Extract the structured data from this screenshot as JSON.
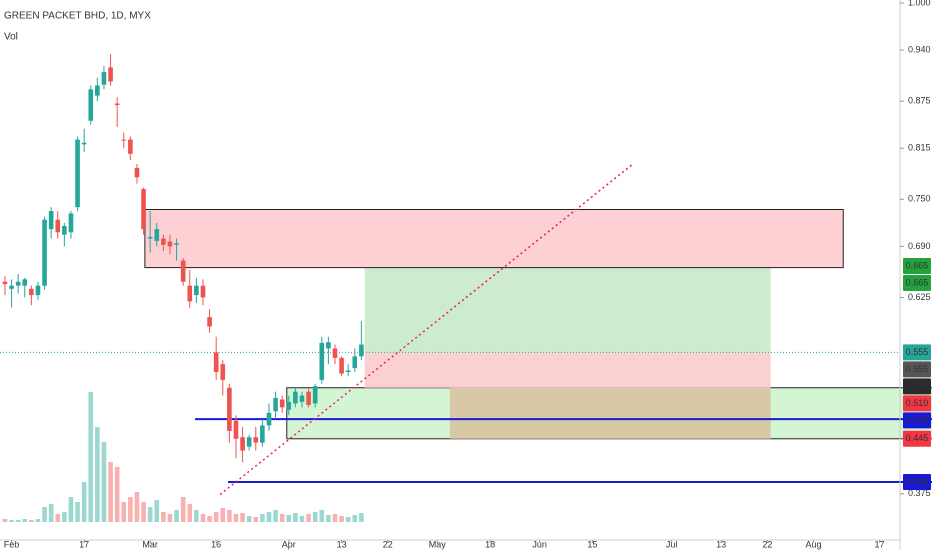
{
  "chart_data": {
    "type": "candlestick",
    "title": "GREEN PACKET BHD, 1D, MYX",
    "subtitle": "Vol",
    "up_color": "#26a69a",
    "down_color": "#ef5350",
    "x": [
      -1,
      0,
      1,
      2,
      3,
      4,
      5,
      6,
      7,
      8,
      9,
      10,
      11,
      12,
      13,
      14,
      15,
      16,
      17,
      18,
      19,
      20,
      21,
      22,
      23,
      24,
      25,
      26,
      27,
      28,
      29,
      30,
      31,
      32,
      33,
      34,
      35,
      36,
      37,
      38,
      39,
      40,
      41,
      42,
      43,
      44,
      45,
      46,
      47,
      48,
      49,
      50,
      51,
      52,
      53
    ],
    "open": [
      0.645,
      0.636,
      0.64,
      0.64,
      0.636,
      0.628,
      0.64,
      0.712,
      0.724,
      0.705,
      0.708,
      0.74,
      0.82,
      0.85,
      0.882,
      0.896,
      0.918,
      0.872,
      0.826,
      0.826,
      0.79,
      0.763,
      0.7,
      0.697,
      0.7,
      0.696,
      0.692,
      0.672,
      0.64,
      0.628,
      0.64,
      0.6,
      0.555,
      0.54,
      0.51,
      0.468,
      0.447,
      0.435,
      0.447,
      0.44,
      0.462,
      0.48,
      0.495,
      0.482,
      0.49,
      0.492,
      0.505,
      0.49,
      0.52,
      0.56,
      0.56,
      0.548,
      0.53,
      0.535,
      0.55
    ],
    "high": [
      0.652,
      0.648,
      0.655,
      0.65,
      0.64,
      0.645,
      0.728,
      0.74,
      0.735,
      0.72,
      0.735,
      0.83,
      0.84,
      0.895,
      0.905,
      0.92,
      0.935,
      0.88,
      0.835,
      0.83,
      0.795,
      0.765,
      0.735,
      0.72,
      0.705,
      0.705,
      0.7,
      0.675,
      0.66,
      0.65,
      0.648,
      0.61,
      0.575,
      0.545,
      0.515,
      0.475,
      0.46,
      0.45,
      0.46,
      0.47,
      0.49,
      0.505,
      0.5,
      0.5,
      0.51,
      0.505,
      0.51,
      0.515,
      0.575,
      0.575,
      0.565,
      0.55,
      0.54,
      0.56,
      0.595
    ],
    "low": [
      0.628,
      0.612,
      0.63,
      0.625,
      0.615,
      0.622,
      0.635,
      0.7,
      0.7,
      0.69,
      0.7,
      0.735,
      0.81,
      0.845,
      0.875,
      0.89,
      0.895,
      0.842,
      0.815,
      0.8,
      0.77,
      0.705,
      0.682,
      0.69,
      0.684,
      0.68,
      0.672,
      0.64,
      0.612,
      0.618,
      0.615,
      0.58,
      0.52,
      0.5,
      0.44,
      0.42,
      0.415,
      0.43,
      0.43,
      0.435,
      0.455,
      0.47,
      0.478,
      0.475,
      0.485,
      0.485,
      0.485,
      0.485,
      0.515,
      0.54,
      0.54,
      0.525,
      0.525,
      0.53,
      0.545
    ],
    "close": [
      0.642,
      0.64,
      0.645,
      0.648,
      0.628,
      0.64,
      0.724,
      0.735,
      0.708,
      0.716,
      0.732,
      0.826,
      0.822,
      0.89,
      0.895,
      0.912,
      0.9,
      0.87,
      0.825,
      0.808,
      0.778,
      0.712,
      0.702,
      0.712,
      0.692,
      0.69,
      0.694,
      0.645,
      0.62,
      0.64,
      0.625,
      0.588,
      0.53,
      0.52,
      0.455,
      0.445,
      0.43,
      0.447,
      0.44,
      0.462,
      0.478,
      0.497,
      0.485,
      0.492,
      0.505,
      0.5,
      0.488,
      0.512,
      0.567,
      0.568,
      0.548,
      0.528,
      0.532,
      0.55,
      0.565
    ],
    "volume": [
      3,
      2,
      2,
      3,
      2,
      3,
      15,
      18,
      8,
      10,
      25,
      20,
      40,
      130,
      95,
      80,
      60,
      55,
      20,
      25,
      30,
      20,
      15,
      22,
      10,
      8,
      12,
      25,
      18,
      12,
      8,
      6,
      10,
      14,
      12,
      8,
      9,
      6,
      5,
      8,
      10,
      12,
      8,
      7,
      9,
      6,
      8,
      10,
      12,
      7,
      8,
      6,
      5,
      7,
      9
    ],
    "ylim": [
      0.325,
      1.0
    ],
    "xlim": [
      -1.75,
      134.6
    ],
    "yticks": [
      {
        "value": 1.0,
        "label": "1.000"
      },
      {
        "value": 0.94,
        "label": "0.940"
      },
      {
        "value": 0.875,
        "label": "0.875"
      },
      {
        "value": 0.815,
        "label": "0.815"
      },
      {
        "value": 0.75,
        "label": "0.750"
      },
      {
        "value": 0.69,
        "label": "0.690"
      },
      {
        "value": 0.625,
        "label": "0.625"
      },
      {
        "value": 0.375,
        "label": "0.375"
      }
    ],
    "xticks": [
      {
        "value": 0,
        "label": "Feb"
      },
      {
        "value": 11,
        "label": "17"
      },
      {
        "value": 21,
        "label": "Mar"
      },
      {
        "value": 31,
        "label": "16"
      },
      {
        "value": 42,
        "label": "Apr"
      },
      {
        "value": 50,
        "label": "13"
      },
      {
        "value": 57,
        "label": "22"
      },
      {
        "value": 64.5,
        "label": "May"
      },
      {
        "value": 72.5,
        "label": "18"
      },
      {
        "value": 80,
        "label": "Jun"
      },
      {
        "value": 88,
        "label": "15"
      },
      {
        "value": 100,
        "label": "Jul"
      },
      {
        "value": 107.5,
        "label": "13"
      },
      {
        "value": 114.5,
        "label": "22"
      },
      {
        "value": 121.5,
        "label": "Aug"
      },
      {
        "value": 131.5,
        "label": "17"
      }
    ],
    "drawings": [
      {
        "kind": "rect",
        "x": [
          41.7,
          140
        ],
        "price": [
          0.445,
          0.51
        ],
        "fill": "#d4f5d4",
        "stroke": "#222"
      },
      {
        "kind": "rect",
        "x": [
          66.4,
          115
        ],
        "price": [
          0.445,
          0.51
        ],
        "fill": "#d8c8a6",
        "stroke": "none"
      },
      {
        "kind": "rect",
        "x": [
          53.5,
          115
        ],
        "price": [
          0.555,
          0.665
        ],
        "fill": "#cdeccd",
        "stroke": "none"
      },
      {
        "kind": "rect",
        "x": [
          53.5,
          115
        ],
        "price": [
          0.51,
          0.555
        ],
        "fill": "#fbd0d0",
        "stroke": "none"
      },
      {
        "kind": "rect",
        "x": [
          20.2,
          126
        ],
        "price": [
          0.663,
          0.737
        ],
        "fill": "#fdd0d3",
        "stroke": "#222"
      },
      {
        "kind": "hline",
        "x": [
          -1.75,
          134.6
        ],
        "price": 0.555,
        "color": "#26a69a",
        "dash": "1 2"
      },
      {
        "kind": "hline",
        "x": [
          27.8,
          140
        ],
        "price": 0.47,
        "color": "#1a1ad6",
        "dash": ""
      },
      {
        "kind": "hline",
        "x": [
          32.8,
          140
        ],
        "price": 0.39,
        "color": "#1a1ad6",
        "dash": ""
      },
      {
        "kind": "line",
        "x": [
          31.6,
          94
        ],
        "price": [
          0.374,
          0.794
        ],
        "color": "#e91e63",
        "dash": "2 3"
      }
    ],
    "price_labels": [
      {
        "value": 0.665,
        "label": "0.665",
        "color": "#22a33d"
      },
      {
        "value": 0.665,
        "label": "0.665",
        "color": "#22a33d"
      },
      {
        "value": 0.555,
        "label": "0.555",
        "color": "#26a69a"
      },
      {
        "value": 0.555,
        "label": "0.555",
        "color": "#555555"
      },
      {
        "value": 0.555,
        "label": "0.555",
        "color": "#2a2a2a"
      },
      {
        "value": 0.51,
        "label": "0.510",
        "color": "#f23645"
      },
      {
        "value": 0.47,
        "label": "0.470",
        "color": "#1a1ad6"
      },
      {
        "value": 0.445,
        "label": "0.445",
        "color": "#f23645"
      },
      {
        "value": 0.39,
        "label": "0.390",
        "color": "#1a1ad6"
      }
    ]
  }
}
